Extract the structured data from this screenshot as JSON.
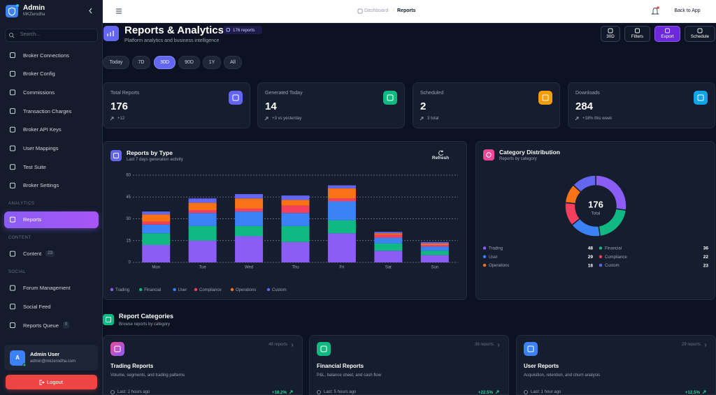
{
  "sidebar": {
    "brand": "Admin",
    "brand_sub": "MKZerodha",
    "search_placeholder": "Search...",
    "nav": [
      {
        "label": "Broker Connections"
      },
      {
        "label": "Broker Config"
      },
      {
        "label": "Commissions"
      },
      {
        "label": "Transaction Charges"
      },
      {
        "label": "Broker API Keys"
      },
      {
        "label": "User Mappings"
      },
      {
        "label": "Test Suite"
      },
      {
        "label": "Broker Settings"
      }
    ],
    "sections": [
      {
        "heading": "ANALYTICS",
        "items": [
          {
            "label": "Reports",
            "active": true
          }
        ]
      },
      {
        "heading": "CONTENT",
        "items": [
          {
            "label": "Content",
            "badge": 23
          }
        ]
      },
      {
        "heading": "SOCIAL",
        "items": [
          {
            "label": "Forum Management"
          },
          {
            "label": "Social Feed"
          },
          {
            "label": "Reports Queue",
            "badge": 0
          }
        ]
      }
    ],
    "user": {
      "initial": "A",
      "name": "Admin User",
      "email": "admin@mkzerodha.com"
    },
    "logout": "Logout"
  },
  "header": {
    "breadcrumb": [
      "Dashboard",
      "Reports"
    ],
    "separator": "/",
    "back": "Back to App"
  },
  "page": {
    "title": "Reports & Analytics",
    "badge": "176 reports",
    "subtitle": "Platform analytics and business intelligence",
    "actions": [
      "30D",
      "Filters",
      "Export",
      "Schedule"
    ],
    "ranges": [
      {
        "label": "Today"
      },
      {
        "label": "7D"
      },
      {
        "label": "30D",
        "active": true
      },
      {
        "label": "90D"
      },
      {
        "label": "1Y"
      },
      {
        "label": "All"
      }
    ]
  },
  "stats": [
    {
      "label": "Total Reports",
      "value": 176,
      "change": "+12"
    },
    {
      "label": "Generated Today",
      "value": 14,
      "change": "+3 vs yesterday"
    },
    {
      "label": "Scheduled",
      "value": 2,
      "change": "3 total"
    },
    {
      "label": "Downloads",
      "value": 284,
      "change": "+18% this week"
    }
  ],
  "chart_data": [
    {
      "type": "bar",
      "stacked": true,
      "title": "Reports by Type",
      "subtitle": "Last 7 days generation activity",
      "button": "Refresh",
      "categories": [
        "Mon",
        "Tue",
        "Wed",
        "Thu",
        "Fri",
        "Sat",
        "Sun"
      ],
      "series": [
        {
          "name": "Trading",
          "color": "#8b5cf6",
          "values": [
            12,
            15,
            18,
            14,
            20,
            8,
            5
          ]
        },
        {
          "name": "Financial",
          "color": "#10b981",
          "values": [
            8,
            10,
            7,
            11,
            9,
            5,
            3
          ]
        },
        {
          "name": "User",
          "color": "#3b82f6",
          "values": [
            6,
            9,
            10,
            9,
            13,
            4,
            3
          ]
        },
        {
          "name": "Compliance",
          "color": "#f43f5e",
          "values": [
            2,
            2,
            2,
            5,
            2,
            2,
            1
          ]
        },
        {
          "name": "Operations",
          "color": "#f97316",
          "values": [
            5,
            5,
            7,
            4,
            7,
            1,
            1
          ]
        },
        {
          "name": "Custom",
          "color": "#6366f1",
          "values": [
            2,
            3,
            3,
            3,
            2,
            1,
            1
          ]
        }
      ],
      "ylim": [
        0,
        60
      ],
      "yticks": [
        0,
        15,
        30,
        45,
        60
      ],
      "grid": true,
      "legend": "bottom"
    },
    {
      "type": "pie",
      "donut": true,
      "title": "Category Distribution",
      "subtitle": "Reports by category",
      "center_value": 176,
      "center_label": "Total",
      "categories": [
        "Trading",
        "Financial",
        "User",
        "Compliance",
        "Operations",
        "Custom"
      ],
      "values": [
        48,
        36,
        29,
        22,
        18,
        23
      ],
      "colors": [
        "#8b5cf6",
        "#10b981",
        "#3b82f6",
        "#f43f5e",
        "#f97316",
        "#6366f1"
      ]
    }
  ],
  "report_categories": {
    "title": "Report Categories",
    "subtitle": "Browse reports by category",
    "cards": [
      {
        "title": "Trading Reports",
        "count": "48 reports",
        "description": "Volume, segments, and trading patterns",
        "last": "Last: 2 hours ago",
        "growth": "+18.2%"
      },
      {
        "title": "Financial Reports",
        "count": "36 reports",
        "description": "P&L, balance sheet, and cash flow",
        "last": "Last: 5 hours ago",
        "growth": "+22.5%"
      },
      {
        "title": "User Reports",
        "count": "29 reports",
        "description": "Acquisition, retention, and churn analysis",
        "last": "Last: 1 hour ago",
        "growth": "+12.5%"
      }
    ]
  }
}
